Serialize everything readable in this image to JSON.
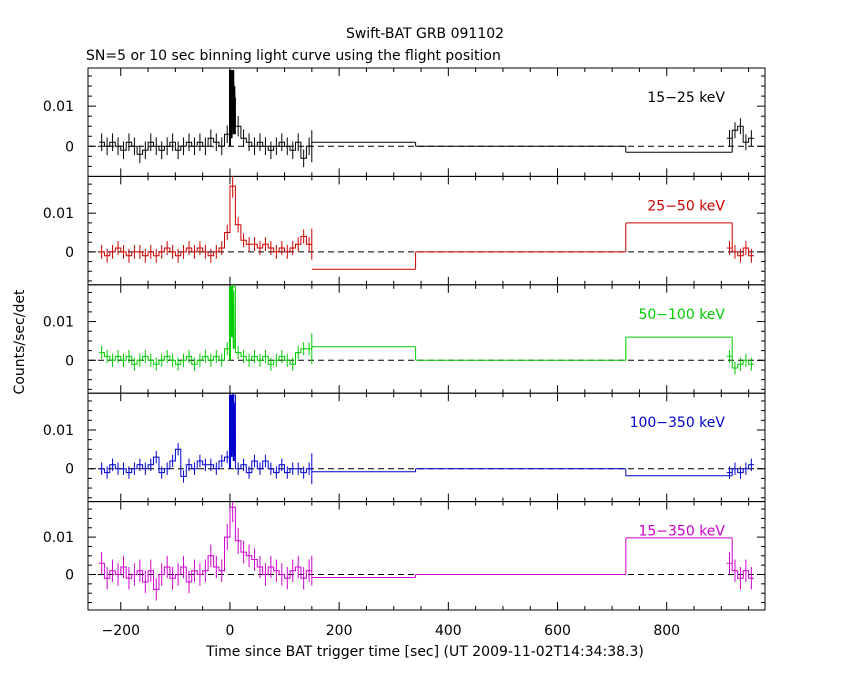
{
  "chart_data": {
    "type": "line",
    "title": "Swift-BAT GRB 091102",
    "subtitle": "SN=5 or 10 sec binning light curve using the flight position",
    "xlabel": "Time since BAT trigger time [sec] (UT 2009-11-02T14:34:38.3)",
    "ylabel": "Counts/sec/det",
    "xlim": [
      -260,
      980
    ],
    "x_ticks": [
      -200,
      0,
      200,
      400,
      600,
      800
    ],
    "x_tick_labels": [
      "−200",
      "0",
      "200",
      "400",
      "600",
      "800"
    ],
    "y_tick_labels": [
      "0.01",
      "0"
    ],
    "grid": false,
    "panels": [
      {
        "name": "15-25 keV",
        "label": "15−25 keV",
        "color": "#000000",
        "ylim": [
          -0.0075,
          0.0195
        ],
        "fine": {
          "x": [
            -235,
            -225,
            -215,
            -205,
            -195,
            -185,
            -175,
            -165,
            -155,
            -145,
            -135,
            -125,
            -115,
            -105,
            -95,
            -85,
            -75,
            -65,
            -55,
            -45,
            -35,
            -25,
            -15,
            -5,
            5,
            15,
            25,
            35,
            45,
            55,
            65,
            75,
            85,
            95,
            105,
            115,
            125,
            135,
            145
          ],
          "y": [
            0.001,
            0.0,
            0.001,
            0.0,
            -0.001,
            0.001,
            0.0,
            -0.002,
            -0.001,
            0.001,
            0.0,
            -0.001,
            0.0,
            0.001,
            -0.001,
            0.0,
            0.001,
            0.0,
            0.001,
            0.0,
            0.002,
            0.001,
            0.0,
            0.003,
            0.012,
            0.005,
            0.002,
            0.001,
            0.0,
            0.001,
            0.0,
            -0.001,
            0.0,
            0.001,
            0.0,
            -0.001,
            0.001,
            -0.003,
            0.0
          ],
          "err": [
            0.0022,
            0.0022,
            0.0022,
            0.0022,
            0.0022,
            0.0022,
            0.0022,
            0.0022,
            0.0022,
            0.0022,
            0.0022,
            0.0022,
            0.0022,
            0.0022,
            0.0022,
            0.0022,
            0.0022,
            0.0022,
            0.0022,
            0.0022,
            0.0022,
            0.0022,
            0.0022,
            0.0022,
            0.0035,
            0.0025,
            0.0022,
            0.0022,
            0.0022,
            0.0022,
            0.0022,
            0.0022,
            0.0022,
            0.0022,
            0.0022,
            0.0022,
            0.0022,
            0.0022,
            0.0022
          ]
        },
        "spike": {
          "x": [
            0,
            1,
            2,
            3,
            4,
            5,
            6,
            7,
            8
          ],
          "y": [
            0.019,
            0.005,
            0.019,
            0.002,
            0.019,
            0.006,
            0.019,
            0.003,
            0.015
          ]
        },
        "coarse": [
          [
            150,
            340,
            0.001
          ],
          [
            340,
            725,
            0.0
          ],
          [
            725,
            920,
            -0.0015
          ]
        ],
        "late": {
          "x": [
            915,
            925,
            935,
            945,
            955
          ],
          "y": [
            0.002,
            0.004,
            0.005,
            0.001,
            0.002
          ],
          "err": [
            0.002,
            0.002,
            0.002,
            0.002,
            0.002
          ]
        }
      },
      {
        "name": "25-50 keV",
        "label": "25−50 keV",
        "color": "#cc0000",
        "ylim": [
          -0.0085,
          0.0195
        ],
        "fine": {
          "x": [
            -235,
            -225,
            -215,
            -205,
            -195,
            -185,
            -175,
            -165,
            -155,
            -145,
            -135,
            -125,
            -115,
            -105,
            -95,
            -85,
            -75,
            -65,
            -55,
            -45,
            -35,
            -25,
            -15,
            -5,
            5,
            15,
            25,
            35,
            45,
            55,
            65,
            75,
            85,
            95,
            105,
            115,
            125,
            135,
            145
          ],
          "y": [
            0.0,
            -0.001,
            0.0,
            0.001,
            0.0,
            -0.001,
            0.0,
            0.0,
            -0.001,
            0.0,
            -0.001,
            0.0,
            0.001,
            0.0,
            -0.001,
            0.0,
            0.001,
            0.0,
            0.001,
            0.0,
            -0.001,
            0.0,
            0.001,
            0.005,
            0.017,
            0.007,
            0.003,
            0.002,
            0.002,
            0.001,
            0.002,
            0.001,
            0.0,
            0.001,
            0.0,
            0.001,
            0.002,
            0.004,
            0.002
          ],
          "err": [
            0.0018,
            0.0018,
            0.0018,
            0.0018,
            0.0018,
            0.0018,
            0.0018,
            0.0018,
            0.0018,
            0.0018,
            0.0018,
            0.0018,
            0.0018,
            0.0018,
            0.0018,
            0.0018,
            0.0018,
            0.0018,
            0.0018,
            0.0018,
            0.0018,
            0.0018,
            0.0018,
            0.002,
            0.003,
            0.002,
            0.0018,
            0.0018,
            0.0018,
            0.0018,
            0.0018,
            0.0018,
            0.0018,
            0.0018,
            0.0018,
            0.0018,
            0.0018,
            0.0018,
            0.0018
          ]
        },
        "spike": {
          "x": [],
          "y": []
        },
        "coarse": [
          [
            150,
            340,
            -0.0045
          ],
          [
            340,
            725,
            0.0
          ],
          [
            725,
            920,
            0.0075
          ]
        ],
        "late": {
          "x": [
            915,
            925,
            935,
            945,
            955
          ],
          "y": [
            0.001,
            0.0,
            -0.001,
            0.001,
            -0.001
          ],
          "err": [
            0.0018,
            0.0018,
            0.0018,
            0.0018,
            0.0018
          ]
        }
      },
      {
        "name": "50-100 keV",
        "label": "50−100 keV",
        "color": "#00cc00",
        "ylim": [
          -0.0085,
          0.0195
        ],
        "fine": {
          "x": [
            -235,
            -225,
            -215,
            -205,
            -195,
            -185,
            -175,
            -165,
            -155,
            -145,
            -135,
            -125,
            -115,
            -105,
            -95,
            -85,
            -75,
            -65,
            -55,
            -45,
            -35,
            -25,
            -15,
            -5,
            5,
            15,
            25,
            35,
            45,
            55,
            65,
            75,
            85,
            95,
            105,
            115,
            125,
            135,
            145
          ],
          "y": [
            0.002,
            0.001,
            0.0,
            0.001,
            0.0,
            0.001,
            -0.001,
            0.0,
            0.001,
            0.0,
            -0.001,
            0.0,
            0.001,
            0.0,
            -0.001,
            0.0,
            0.001,
            -0.001,
            0.0,
            0.001,
            0.0,
            0.001,
            0.0,
            0.003,
            0.019,
            0.002,
            0.001,
            0.0,
            0.001,
            0.0,
            0.001,
            -0.001,
            0.0,
            0.001,
            0.0,
            -0.001,
            0.002,
            0.003,
            0.003
          ],
          "err": [
            0.0017,
            0.0017,
            0.0017,
            0.0017,
            0.0017,
            0.0017,
            0.0017,
            0.0017,
            0.0017,
            0.0017,
            0.0017,
            0.0017,
            0.0017,
            0.0017,
            0.0017,
            0.0017,
            0.0017,
            0.0017,
            0.0017,
            0.0017,
            0.0017,
            0.0017,
            0.0017,
            0.0017,
            0.003,
            0.0017,
            0.0017,
            0.0017,
            0.0017,
            0.0017,
            0.0017,
            0.0017,
            0.0017,
            0.0017,
            0.0017,
            0.0017,
            0.0017,
            0.0017,
            0.0017
          ]
        },
        "spike": {
          "x": [
            0,
            1,
            2,
            3,
            4,
            5,
            6
          ],
          "y": [
            0.019,
            0.008,
            0.019,
            0.006,
            0.019,
            0.009,
            0.018
          ]
        },
        "coarse": [
          [
            150,
            340,
            0.0035
          ],
          [
            340,
            725,
            0.0
          ],
          [
            725,
            920,
            0.006
          ]
        ],
        "late": {
          "x": [
            915,
            925,
            935,
            945,
            955
          ],
          "y": [
            0.001,
            -0.002,
            -0.001,
            0.0,
            -0.001
          ],
          "err": [
            0.0017,
            0.0017,
            0.0017,
            0.0017,
            0.0017
          ]
        }
      },
      {
        "name": "100-350 keV",
        "label": "100−350 keV",
        "color": "#0000cc",
        "ylim": [
          -0.0085,
          0.0195
        ],
        "fine": {
          "x": [
            -235,
            -225,
            -215,
            -205,
            -195,
            -185,
            -175,
            -165,
            -155,
            -145,
            -135,
            -125,
            -115,
            -105,
            -95,
            -85,
            -75,
            -65,
            -55,
            -45,
            -35,
            -25,
            -15,
            -5,
            5,
            15,
            25,
            35,
            45,
            55,
            65,
            75,
            85,
            95,
            105,
            115,
            125,
            135,
            145
          ],
          "y": [
            0.0,
            -0.001,
            0.001,
            0.0,
            0.0,
            -0.001,
            0.0,
            0.001,
            0.0,
            0.001,
            0.003,
            -0.001,
            0.0,
            0.002,
            0.005,
            -0.002,
            0.001,
            0.0,
            0.002,
            0.001,
            0.001,
            0.0,
            0.002,
            0.003,
            0.019,
            0.0,
            0.001,
            -0.001,
            0.002,
            0.0,
            0.002,
            0.0,
            -0.001,
            0.001,
            -0.001,
            0.0,
            0.0,
            -0.001,
            0.0
          ],
          "err": [
            0.0016,
            0.0016,
            0.0016,
            0.0016,
            0.0016,
            0.0016,
            0.0016,
            0.0016,
            0.0016,
            0.0016,
            0.0016,
            0.0016,
            0.0016,
            0.0016,
            0.0016,
            0.0016,
            0.0016,
            0.0016,
            0.0016,
            0.0016,
            0.0016,
            0.0016,
            0.0016,
            0.0016,
            0.003,
            0.0016,
            0.0016,
            0.0016,
            0.0016,
            0.0016,
            0.0016,
            0.0016,
            0.0016,
            0.0016,
            0.0016,
            0.0016,
            0.0016,
            0.0016,
            0.0016
          ]
        },
        "spike": {
          "x": [
            0,
            1,
            2,
            3,
            4,
            5,
            6,
            7,
            8
          ],
          "y": [
            0.019,
            0.004,
            0.019,
            0.003,
            0.019,
            0.005,
            0.019,
            0.002,
            0.017
          ]
        },
        "coarse": [
          [
            150,
            340,
            -0.0008
          ],
          [
            340,
            725,
            0.0
          ],
          [
            725,
            920,
            -0.0018
          ]
        ],
        "late": {
          "x": [
            915,
            925,
            935,
            945,
            955
          ],
          "y": [
            -0.001,
            0.0,
            -0.001,
            0.0,
            0.001
          ],
          "err": [
            0.0016,
            0.0016,
            0.0016,
            0.0016,
            0.0016
          ]
        }
      },
      {
        "name": "15-350 keV",
        "label": "15−350 keV",
        "color": "#cc00cc",
        "ylim": [
          -0.0095,
          0.0195
        ],
        "fine": {
          "x": [
            -235,
            -225,
            -215,
            -205,
            -195,
            -185,
            -175,
            -165,
            -155,
            -145,
            -135,
            -125,
            -115,
            -105,
            -95,
            -85,
            -75,
            -65,
            -55,
            -45,
            -35,
            -25,
            -15,
            -5,
            5,
            15,
            25,
            35,
            45,
            55,
            65,
            75,
            85,
            95,
            105,
            115,
            125,
            135,
            145
          ],
          "y": [
            0.003,
            -0.001,
            0.001,
            0.0,
            0.002,
            -0.001,
            0.0,
            0.001,
            -0.002,
            0.001,
            -0.004,
            0.0,
            0.002,
            -0.001,
            0.0,
            0.002,
            -0.002,
            0.001,
            0.0,
            0.001,
            0.005,
            0.002,
            0.001,
            0.01,
            0.018,
            0.009,
            0.006,
            0.005,
            0.004,
            0.002,
            0.0,
            0.002,
            0.001,
            0.0,
            -0.001,
            0.001,
            0.002,
            -0.001,
            0.001
          ],
          "err": [
            0.003,
            0.003,
            0.003,
            0.003,
            0.003,
            0.003,
            0.003,
            0.003,
            0.003,
            0.003,
            0.003,
            0.003,
            0.003,
            0.003,
            0.003,
            0.003,
            0.003,
            0.003,
            0.003,
            0.003,
            0.003,
            0.003,
            0.003,
            0.0035,
            0.004,
            0.0035,
            0.003,
            0.003,
            0.003,
            0.003,
            0.003,
            0.003,
            0.003,
            0.003,
            0.003,
            0.003,
            0.003,
            0.003,
            0.003
          ]
        },
        "spike": {
          "x": [],
          "y": []
        },
        "coarse": [
          [
            150,
            340,
            -0.0008
          ],
          [
            340,
            725,
            0.0
          ],
          [
            725,
            920,
            0.0098
          ]
        ],
        "late": {
          "x": [
            915,
            925,
            935,
            945,
            955
          ],
          "y": [
            0.003,
            0.001,
            -0.001,
            0.001,
            -0.001
          ],
          "err": [
            0.003,
            0.003,
            0.003,
            0.003,
            0.003
          ]
        }
      }
    ]
  }
}
